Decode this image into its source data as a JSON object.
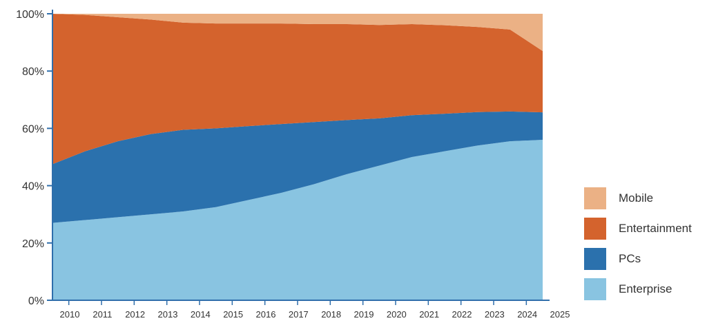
{
  "chart_data": {
    "type": "area",
    "stacked": true,
    "x": [
      "2010",
      "2011",
      "2012",
      "2013",
      "2014",
      "2015",
      "2016",
      "2017",
      "2018",
      "2019",
      "2020",
      "2021",
      "2022",
      "2023",
      "2024",
      "2025"
    ],
    "series": [
      {
        "name": "Enterprise",
        "color": "#89c4e1",
        "values": [
          27,
          28,
          29,
          30,
          31,
          32.5,
          35,
          37.5,
          40.5,
          44,
          47,
          50,
          52,
          54,
          55.5,
          56
        ]
      },
      {
        "name": "PCs",
        "color": "#2b71ad",
        "values": [
          20.5,
          24,
          26.5,
          28,
          28.5,
          27.5,
          25.8,
          24,
          21.7,
          18.9,
          16.5,
          14.6,
          13.1,
          11.7,
          10.4,
          9.6
        ]
      },
      {
        "name": "Entertainment",
        "color": "#d4632d",
        "values": [
          52.5,
          47.6,
          43.3,
          40,
          37.4,
          36.6,
          35.8,
          35.1,
          34.2,
          33.5,
          32.6,
          31.8,
          30.9,
          29.7,
          28.6,
          21.4
        ]
      },
      {
        "name": "Mobile",
        "color": "#ebb185",
        "values": [
          0,
          0.4,
          1.2,
          2,
          3.1,
          3.4,
          3.4,
          3.4,
          3.6,
          3.6,
          3.9,
          3.6,
          4,
          4.6,
          5.5,
          13
        ]
      }
    ],
    "ylim": [
      0,
      100
    ],
    "yticks": [
      "0%",
      "20%",
      "40%",
      "60%",
      "80%",
      "100%"
    ],
    "xlabel": "",
    "ylabel": "",
    "legend_position": "right",
    "axis_color": "#2f6eab"
  },
  "legend": [
    {
      "name": "Mobile",
      "color": "#ebb185"
    },
    {
      "name": "Entertainment",
      "color": "#d4632d"
    },
    {
      "name": "PCs",
      "color": "#2b71ad"
    },
    {
      "name": "Enterprise",
      "color": "#89c4e1"
    }
  ]
}
